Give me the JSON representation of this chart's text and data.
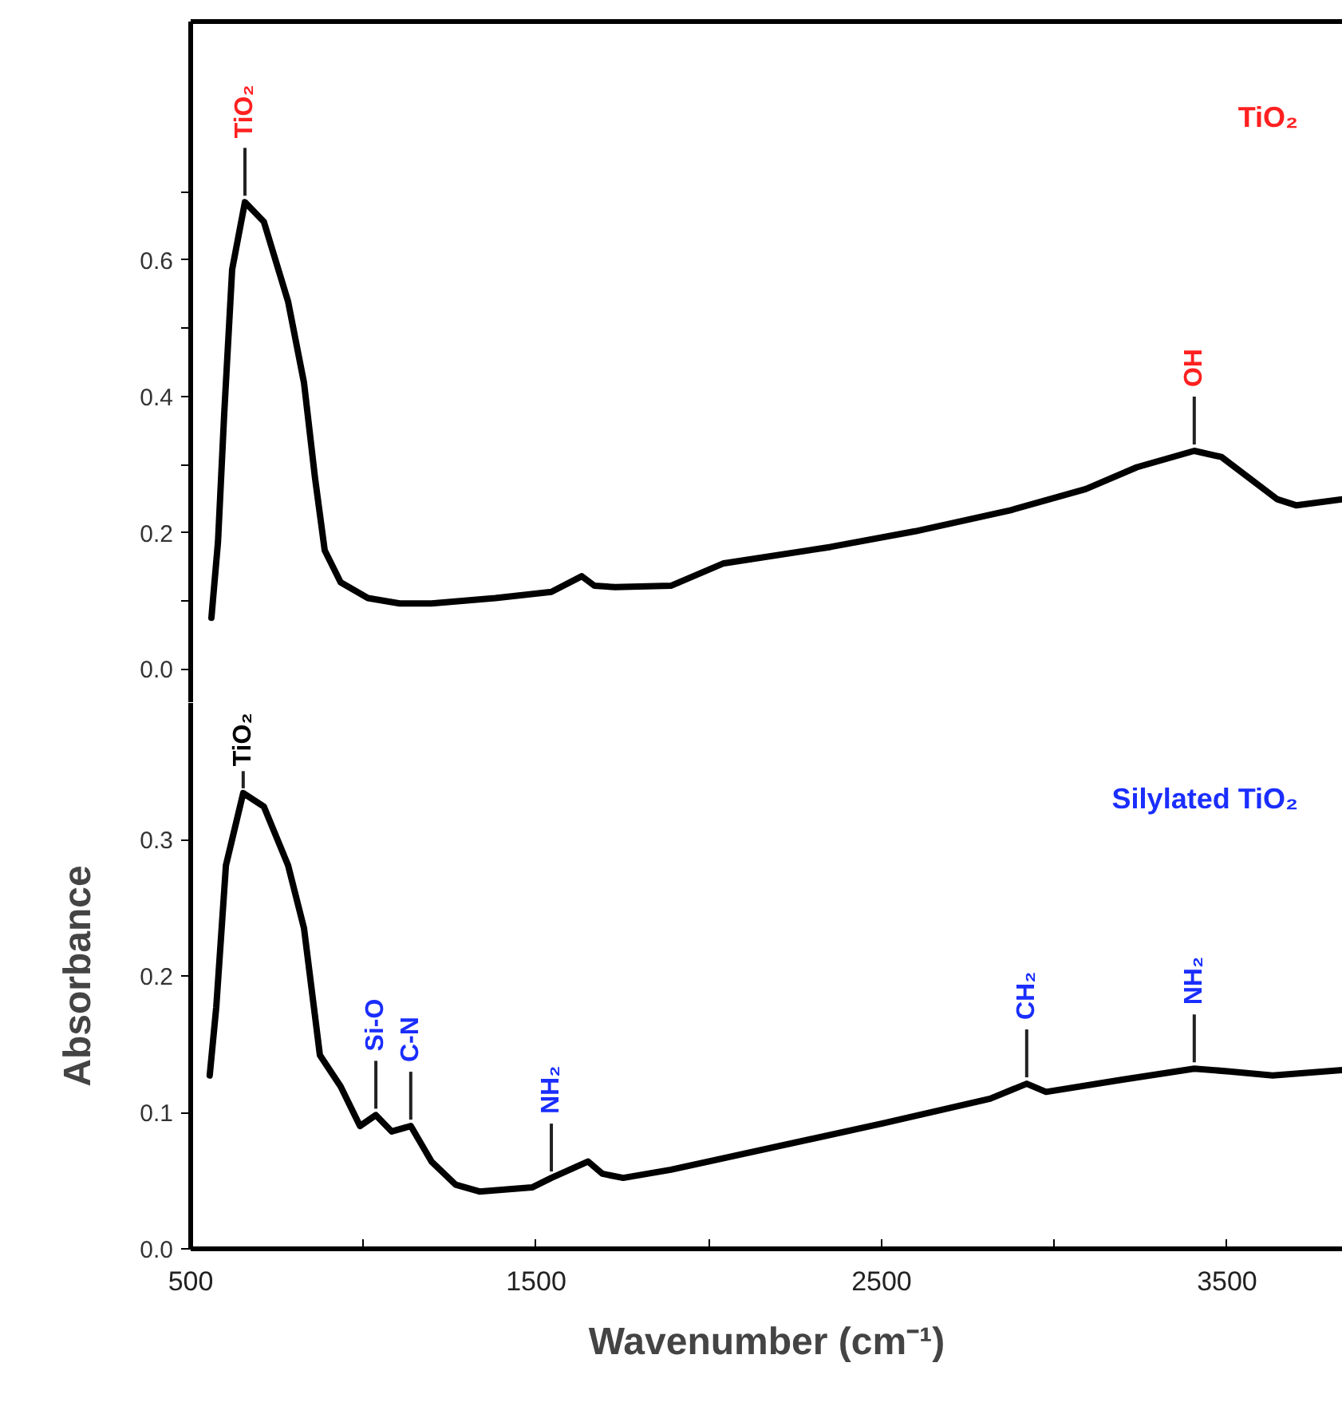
{
  "chart_data": [
    {
      "type": "line",
      "xlim": [
        500,
        3835
      ],
      "ylim": [
        -0.05,
        0.95
      ],
      "yticks": [
        {
          "value": 0,
          "label": "0.0"
        },
        {
          "value": 0.1,
          "label": null
        },
        {
          "value": 0.2,
          "label": "0.2"
        },
        {
          "value": 0.3,
          "label": null
        },
        {
          "value": 0.4,
          "label": "0.4"
        },
        {
          "value": 0.5,
          "label": null
        },
        {
          "value": 0.6,
          "label": "0.6"
        },
        {
          "value": 0.7,
          "label": null
        }
      ],
      "tick_labels": "y",
      "grid": false,
      "marker": "none",
      "line_style": "solid",
      "series": [
        {
          "color": "#000000",
          "x": [
            560,
            579,
            597,
            620,
            657,
            712,
            782,
            828,
            860,
            888,
            934,
            1013,
            1105,
            1197,
            1382,
            1544,
            1632,
            1669,
            1729,
            1890,
            2043,
            2352,
            2597,
            2874,
            3091,
            3239,
            3405,
            3484,
            3645,
            3701,
            3835
          ],
          "values": [
            0.075,
            0.186,
            0.374,
            0.586,
            0.685,
            0.656,
            0.539,
            0.42,
            0.28,
            0.174,
            0.127,
            0.104,
            0.096,
            0.096,
            0.104,
            0.113,
            0.136,
            0.122,
            0.12,
            0.122,
            0.155,
            0.179,
            0.202,
            0.233,
            0.264,
            0.296,
            0.32,
            0.311,
            0.249,
            0.24,
            0.249
          ]
        }
      ],
      "annotations": [
        {
          "text": "TiO₂",
          "x": 657,
          "y": 0.685
        },
        {
          "text": "OH",
          "x": 3405,
          "y": 0.32
        },
        "TiO₂"
      ]
    },
    {
      "type": "line",
      "xlabel": "Wavenumber (cm⁻¹)",
      "ylabel": "Absorbance",
      "xlim": [
        500,
        3835
      ],
      "xticks": [
        500,
        {
          "value": 1000,
          "label": null
        },
        1500,
        {
          "value": 2000,
          "label": null
        },
        2500,
        {
          "value": 3000,
          "label": null
        },
        3500
      ],
      "ylim": [
        0,
        0.4
      ],
      "yticks": [
        {
          "value": 0,
          "label": "0.0"
        },
        0.1,
        0.2,
        0.3
      ],
      "grid": false,
      "marker": "none",
      "line_style": "solid",
      "series": [
        {
          "color": "#000000",
          "x": [
            555,
            574,
            602,
            652,
            712,
            782,
            828,
            874,
            934,
            990,
            1036,
            1082,
            1137,
            1197,
            1267,
            1336,
            1488,
            1544,
            1650,
            1692,
            1752,
            1890,
            2505,
            2814,
            2920,
            2976,
            3197,
            3405,
            3507,
            3632,
            3835
          ],
          "values": [
            0.127,
            0.177,
            0.281,
            0.334,
            0.324,
            0.281,
            0.235,
            0.142,
            0.119,
            0.09,
            0.098,
            0.086,
            0.09,
            0.064,
            0.047,
            0.042,
            0.045,
            0.052,
            0.064,
            0.055,
            0.052,
            0.058,
            0.092,
            0.11,
            0.121,
            0.115,
            0.124,
            0.132,
            0.13,
            0.127,
            0.131
          ]
        }
      ],
      "annotations": [
        {
          "text": "TiO₂",
          "x": 652,
          "y": 0.334
        },
        {
          "text": "Si-O",
          "x": 1036,
          "y": 0.098
        },
        {
          "text": "C-N",
          "x": 1137,
          "y": 0.09
        },
        {
          "text": "NH₂",
          "x": 1544,
          "y": 0.052
        },
        {
          "text": "CH₂",
          "x": 2920,
          "y": 0.121
        },
        {
          "text": "NH₂",
          "x": 3405,
          "y": 0.132
        },
        "Silylated TiO₂"
      ]
    }
  ]
}
